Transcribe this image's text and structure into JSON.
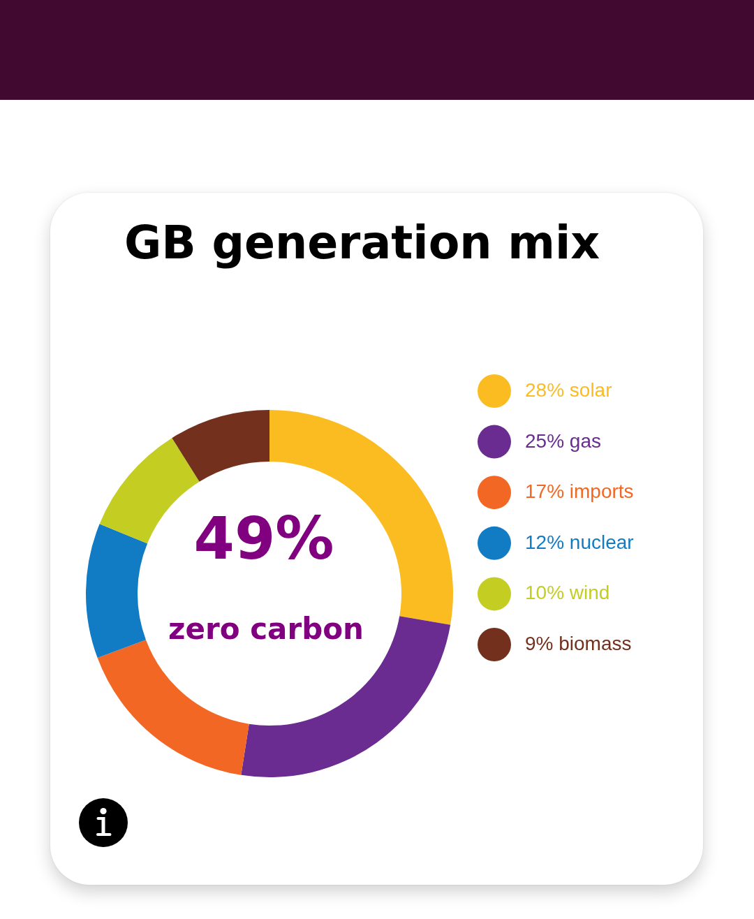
{
  "chart_data": {
    "type": "donut",
    "title": "GB generation mix",
    "categories": [
      "28% solar",
      "25% gas",
      "17% imports",
      "12% nuclear",
      "10% wind",
      "9% biomass"
    ],
    "values": [
      28,
      25,
      17,
      12,
      10,
      9
    ],
    "colors": [
      "#fbbc22",
      "#6a2c91",
      "#f26724",
      "#117bc4",
      "#c4cd22",
      "#73301c"
    ],
    "legend": "right",
    "annotations": [
      "49%",
      "zero carbon"
    ]
  }
}
